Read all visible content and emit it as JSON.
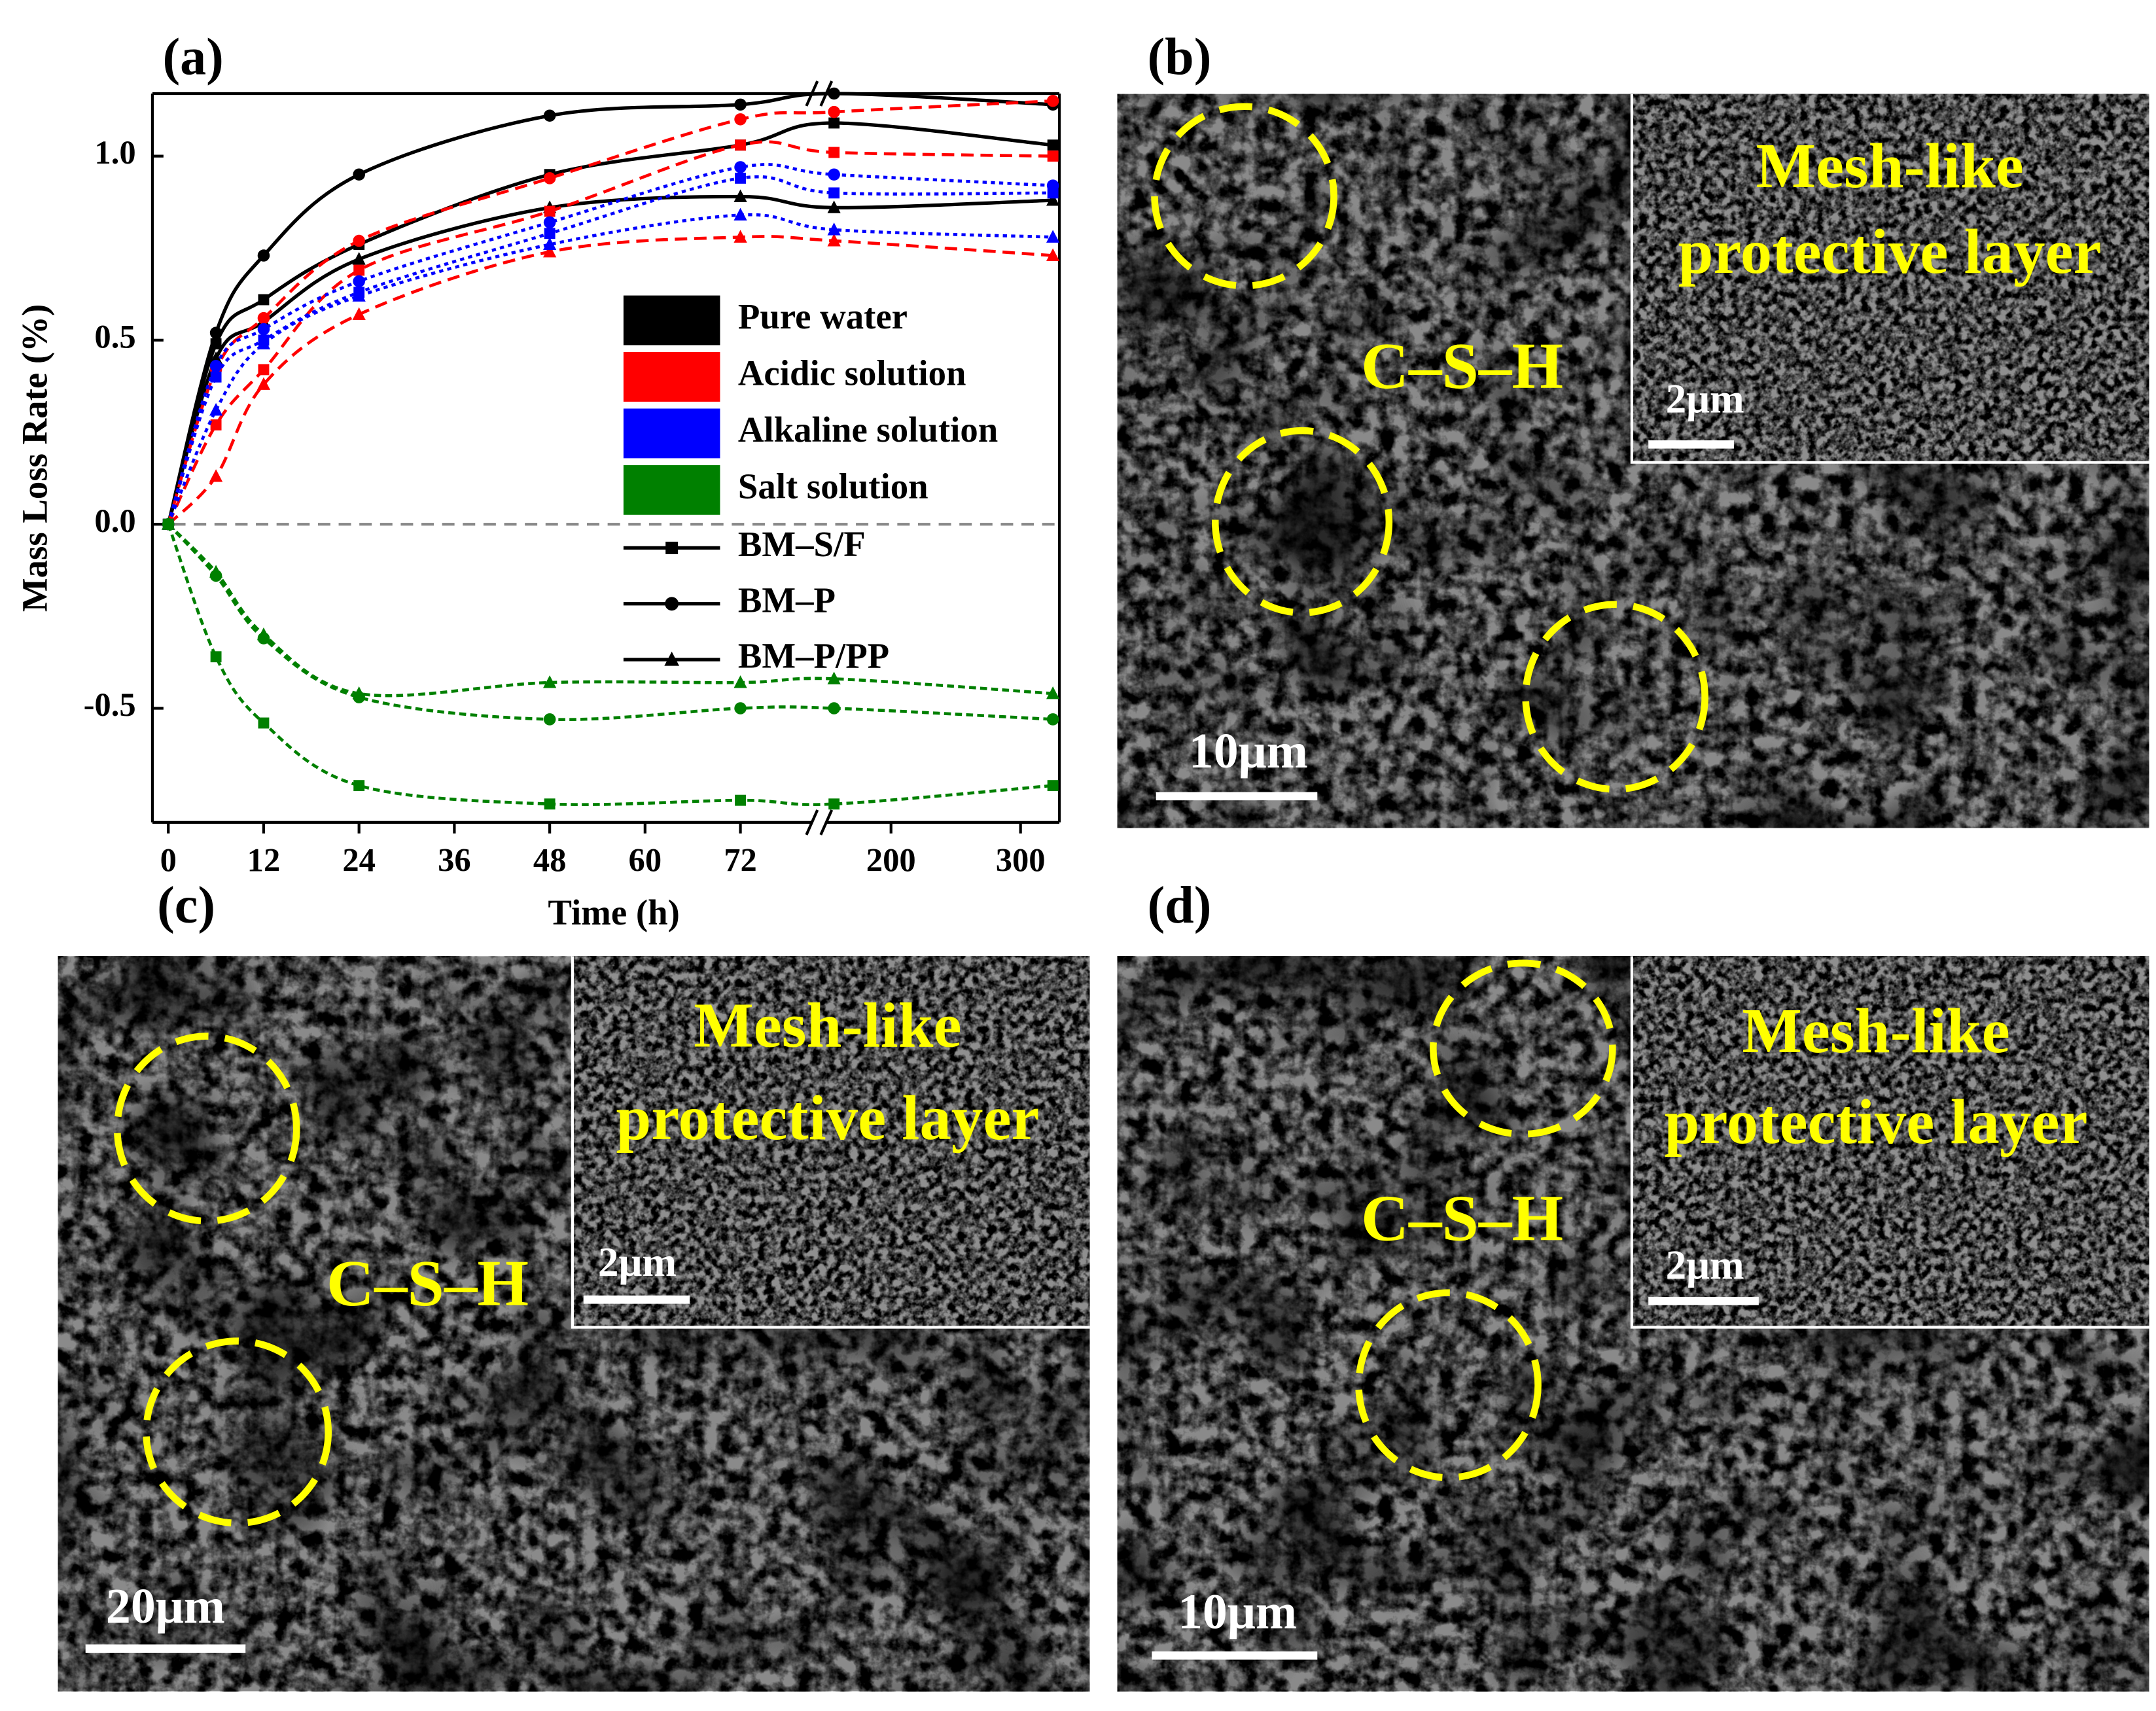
{
  "chart_data": {
    "type": "line",
    "panel_label": "(a)",
    "x_label": "Time (h)",
    "y_label": "Mass Loss Rate (%)",
    "x": [
      0,
      6,
      12,
      24,
      48,
      72,
      156,
      325
    ],
    "xlim": [
      -2,
      330
    ],
    "x_break": [
      81,
      150
    ],
    "xticks": [
      0,
      12,
      24,
      36,
      48,
      60,
      72,
      200,
      300
    ],
    "ylim": [
      -0.81,
      1.17
    ],
    "yticks": [
      -0.5,
      {
        "value": 0,
        "label": "0.0"
      },
      0.5,
      {
        "value": 1,
        "label": "1.0"
      }
    ],
    "zero_line": 0,
    "legend_colors": [
      {
        "name": "Pure water",
        "color": "#000000"
      },
      {
        "name": "Acidic solution",
        "color": "#ff0000"
      },
      {
        "name": "Alkaline solution",
        "color": "#0000ff"
      },
      {
        "name": "Salt solution",
        "color": "#008000"
      }
    ],
    "legend_markers": [
      {
        "name": "BM–S/F",
        "marker": "square"
      },
      {
        "name": "BM–P",
        "marker": "circle"
      },
      {
        "name": "BM–P/PP",
        "marker": "triangle"
      }
    ],
    "series": [
      {
        "color": "#000000",
        "marker": "square",
        "dash": "solid",
        "values": [
          0,
          0.49,
          0.61,
          0.76,
          0.95,
          1.03,
          1.09,
          1.03
        ]
      },
      {
        "color": "#000000",
        "marker": "circle",
        "dash": "solid",
        "values": [
          0,
          0.52,
          0.73,
          0.95,
          1.11,
          1.14,
          1.17,
          1.14
        ]
      },
      {
        "color": "#000000",
        "marker": "triangle",
        "dash": "solid",
        "values": [
          0,
          0.45,
          0.55,
          0.72,
          0.86,
          0.89,
          0.86,
          0.88
        ]
      },
      {
        "color": "#ff0000",
        "marker": "square",
        "dash": "dashed",
        "values": [
          0,
          0.27,
          0.42,
          0.69,
          0.85,
          1.03,
          1.01,
          1.0
        ]
      },
      {
        "color": "#ff0000",
        "marker": "circle",
        "dash": "dashed",
        "values": [
          0,
          0.42,
          0.56,
          0.77,
          0.94,
          1.1,
          1.12,
          1.15
        ]
      },
      {
        "color": "#ff0000",
        "marker": "triangle",
        "dash": "dashed",
        "values": [
          0,
          0.13,
          0.38,
          0.57,
          0.74,
          0.78,
          0.77,
          0.73
        ]
      },
      {
        "color": "#0000ff",
        "marker": "square",
        "dash": "dotted",
        "values": [
          0,
          0.4,
          0.5,
          0.63,
          0.79,
          0.94,
          0.9,
          0.9
        ]
      },
      {
        "color": "#0000ff",
        "marker": "circle",
        "dash": "dotted",
        "values": [
          0,
          0.43,
          0.53,
          0.66,
          0.82,
          0.97,
          0.95,
          0.92
        ]
      },
      {
        "color": "#0000ff",
        "marker": "triangle",
        "dash": "dotted",
        "values": [
          0,
          0.31,
          0.49,
          0.62,
          0.76,
          0.84,
          0.8,
          0.78
        ]
      },
      {
        "color": "#008000",
        "marker": "square",
        "dash": "short-dashed",
        "values": [
          0,
          -0.36,
          -0.54,
          -0.71,
          -0.76,
          -0.75,
          -0.76,
          -0.71
        ]
      },
      {
        "color": "#008000",
        "marker": "circle",
        "dash": "short-dashed",
        "values": [
          0,
          -0.14,
          -0.31,
          -0.47,
          -0.53,
          -0.5,
          -0.5,
          -0.53
        ]
      },
      {
        "color": "#008000",
        "marker": "triangle",
        "dash": "short-dashed",
        "values": [
          0,
          -0.13,
          -0.3,
          -0.46,
          -0.43,
          -0.43,
          -0.42,
          -0.46
        ]
      }
    ]
  },
  "images": [
    {
      "label": "(b)",
      "title": [
        "Mesh-like",
        "protective layer"
      ],
      "phase": "C–S–H",
      "inset_scale": "2μm",
      "scale": "10μm"
    },
    {
      "label": "(c)",
      "title": [
        "Mesh-like",
        "protective layer"
      ],
      "phase": "C–S–H",
      "inset_scale": "2μm",
      "scale": "20μm"
    },
    {
      "label": "(d)",
      "title": [
        "Mesh-like",
        "protective layer"
      ],
      "phase": "C–S–H",
      "inset_scale": "2μm",
      "scale": "10μm"
    }
  ]
}
